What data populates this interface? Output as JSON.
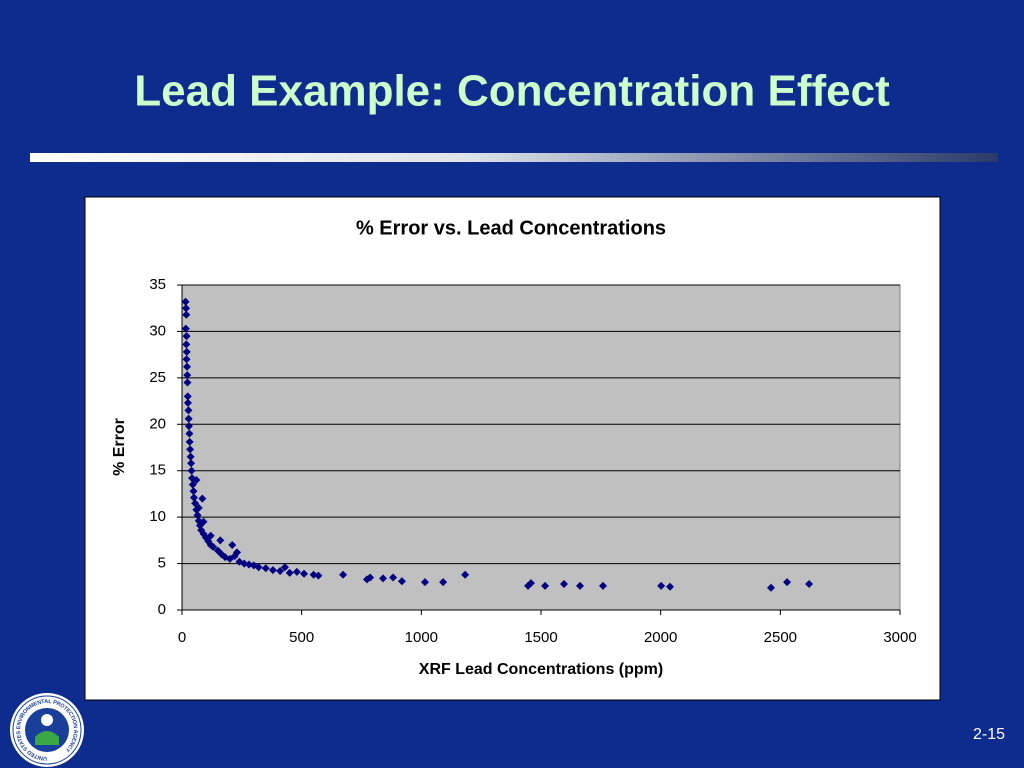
{
  "slide_title": "Lead Example:  Concentration Effect",
  "page_number": "2-15",
  "logo_text": "UNITED STATES ENVIRONMENTAL PROTECTION AGENCY",
  "chart_data": {
    "type": "scatter",
    "title": "% Error vs. Lead Concentrations",
    "x_label": "XRF Lead Concentrations (ppm)",
    "y_label": "% Error",
    "color": "#000080",
    "xlim": [
      0,
      3000
    ],
    "xticks": [
      0,
      500,
      1000,
      1500,
      2000,
      2500,
      3000
    ],
    "ylim": [
      0,
      35
    ],
    "yticks": [
      0,
      5,
      10,
      15,
      20,
      25,
      30,
      35
    ],
    "grid": true,
    "x": [
      15,
      17,
      18,
      16,
      19,
      18,
      20,
      19,
      21,
      22,
      23,
      24,
      25,
      27,
      28,
      29,
      31,
      32,
      34,
      36,
      38,
      40,
      42,
      45,
      48,
      50,
      55,
      60,
      65,
      70,
      75,
      80,
      90,
      100,
      110,
      120,
      130,
      150,
      165,
      180,
      200,
      220,
      240,
      260,
      280,
      300,
      320,
      350,
      380,
      410,
      430,
      450,
      480,
      510,
      550,
      570,
      60,
      85,
      120,
      160,
      210,
      230,
      90,
      70,
      673,
      773,
      786,
      840,
      882,
      919,
      1015,
      1091,
      1183,
      1446,
      1458,
      1517,
      1596,
      1663,
      1759,
      2002,
      2039,
      2461,
      2528,
      2620
    ],
    "values": [
      33.2,
      32.5,
      31.8,
      30.3,
      29.5,
      28.6,
      27.8,
      27.0,
      26.2,
      25.3,
      24.5,
      23.0,
      22.3,
      21.5,
      20.6,
      19.8,
      19.0,
      18.1,
      17.3,
      16.5,
      15.8,
      15.0,
      14.2,
      13.5,
      12.8,
      12.1,
      11.5,
      10.8,
      10.2,
      9.6,
      9.1,
      8.6,
      8.2,
      7.8,
      7.4,
      7.0,
      6.8,
      6.4,
      6.0,
      5.7,
      5.5,
      5.8,
      5.2,
      5.0,
      4.9,
      4.8,
      4.6,
      4.5,
      4.3,
      4.2,
      4.6,
      4.0,
      4.1,
      3.9,
      3.8,
      3.7,
      14.0,
      12.0,
      8.0,
      7.5,
      7.0,
      6.2,
      9.5,
      11.0,
      3.8,
      3.3,
      3.5,
      3.4,
      3.5,
      3.1,
      3.0,
      3.0,
      3.8,
      2.6,
      2.9,
      2.6,
      2.8,
      2.6,
      2.6,
      2.6,
      2.5,
      2.4,
      3.0,
      2.8
    ]
  }
}
